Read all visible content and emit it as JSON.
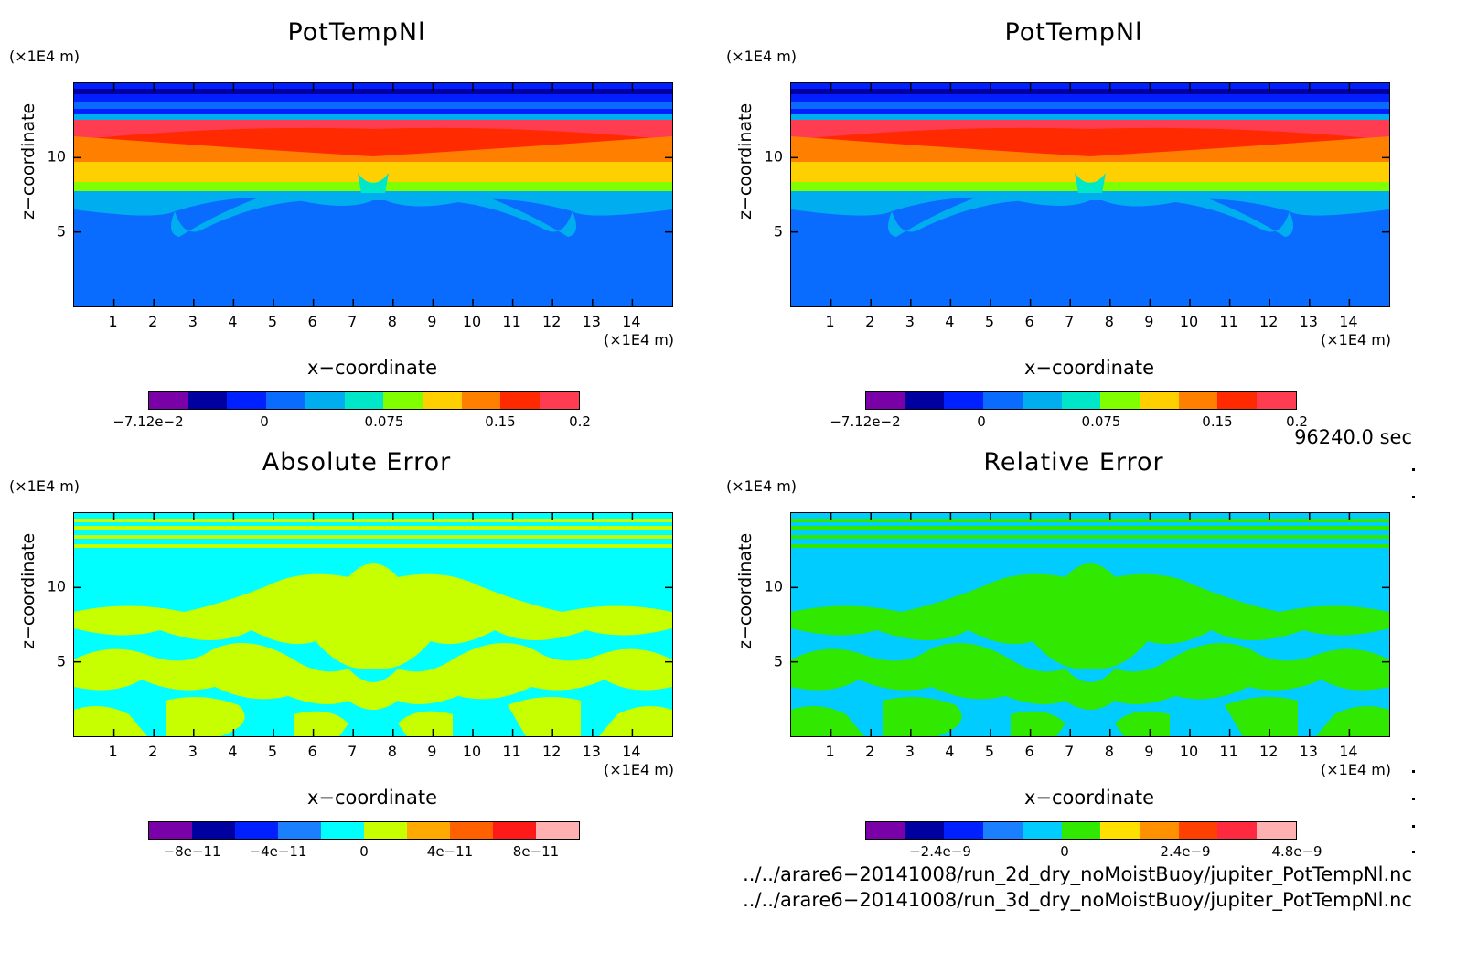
{
  "panels": [
    {
      "id": "pottemp-2d",
      "title": "PotTempNl",
      "z_unit": "(×1E4 m)",
      "z_label": "z−coordinate",
      "x_label": "x−coordinate",
      "x_unit": "(×1E4 m)",
      "x_ticks": [
        "1",
        "2",
        "3",
        "4",
        "5",
        "6",
        "7",
        "8",
        "9",
        "10",
        "11",
        "12",
        "13",
        "14"
      ],
      "z_ticks": [
        "5",
        "10"
      ],
      "colorbar": {
        "colors": [
          "#7a00a8",
          "#0000a0",
          "#0020ff",
          "#0a6cff",
          "#00aef0",
          "#00e6c8",
          "#80ff00",
          "#ffd000",
          "#ff8000",
          "#ff2a00",
          "#ff3c50"
        ],
        "labels": [
          "−7.12e−2",
          "0",
          "0.075",
          "0.15",
          "0.2"
        ]
      }
    },
    {
      "id": "pottemp-3d",
      "title": "PotTempNl",
      "z_unit": "(×1E4 m)",
      "z_label": "z−coordinate",
      "x_label": "x−coordinate",
      "x_unit": "(×1E4 m)",
      "x_ticks": [
        "1",
        "2",
        "3",
        "4",
        "5",
        "6",
        "7",
        "8",
        "9",
        "10",
        "11",
        "12",
        "13",
        "14"
      ],
      "z_ticks": [
        "5",
        "10"
      ],
      "colorbar": {
        "colors": [
          "#7a00a8",
          "#0000a0",
          "#0020ff",
          "#0a6cff",
          "#00aef0",
          "#00e6c8",
          "#80ff00",
          "#ffd000",
          "#ff8000",
          "#ff2a00",
          "#ff3c50"
        ],
        "labels": [
          "−7.12e−2",
          "0",
          "0.075",
          "0.15",
          "0.2"
        ]
      }
    },
    {
      "id": "absolute-error",
      "title": "Absolute Error",
      "z_unit": "(×1E4 m)",
      "z_label": "z−coordinate",
      "x_label": "x−coordinate",
      "x_unit": "(×1E4 m)",
      "x_ticks": [
        "1",
        "2",
        "3",
        "4",
        "5",
        "6",
        "7",
        "8",
        "9",
        "10",
        "11",
        "12",
        "13",
        "14"
      ],
      "z_ticks": [
        "5",
        "10"
      ],
      "colorbar": {
        "colors": [
          "#7a00a8",
          "#0000a0",
          "#0020ff",
          "#1a80ff",
          "#00ffff",
          "#c8ff00",
          "#ffaa00",
          "#ff6000",
          "#ff1a1a",
          "#ffb0b0"
        ],
        "labels": [
          "−8e−11",
          "−4e−11",
          "0",
          "4e−11",
          "8e−11"
        ]
      }
    },
    {
      "id": "relative-error",
      "title": "Relative Error",
      "z_unit": "(×1E4 m)",
      "z_label": "z−coordinate",
      "x_label": "x−coordinate",
      "x_unit": "(×1E4 m)",
      "x_ticks": [
        "1",
        "2",
        "3",
        "4",
        "5",
        "6",
        "7",
        "8",
        "9",
        "10",
        "11",
        "12",
        "13",
        "14"
      ],
      "z_ticks": [
        "5",
        "10"
      ],
      "colorbar": {
        "colors": [
          "#7a00a8",
          "#0000a0",
          "#0020ff",
          "#1a80ff",
          "#00ccff",
          "#30e800",
          "#ffe000",
          "#ff9000",
          "#ff4000",
          "#ff2a40",
          "#ffb0b0"
        ],
        "labels": [
          "−2.4e−9",
          "0",
          "2.4e−9",
          "4.8e−9"
        ]
      }
    }
  ],
  "time_label": "96240.0 sec",
  "file_paths": [
    "../../arare6−20141008/run_2d_dry_noMoistBuoy/jupiter_PotTempNl.nc",
    "../../arare6−20141008/run_3d_dry_noMoistBuoy/jupiter_PotTempNl.nc"
  ],
  "chart_data": [
    {
      "type": "heatmap",
      "title": "PotTempNl",
      "xlabel": "x−coordinate",
      "ylabel": "z−coordinate",
      "x_unit": "(×1E4 m)",
      "y_unit": "(×1E4 m)",
      "xlim": [
        0,
        15
      ],
      "ylim": [
        0,
        15
      ],
      "x_ticks": [
        1,
        2,
        3,
        4,
        5,
        6,
        7,
        8,
        9,
        10,
        11,
        12,
        13,
        14
      ],
      "y_ticks": [
        5,
        10
      ],
      "colorbar_ticks": [
        "−7.12e−2",
        "0",
        "0.075",
        "0.15",
        "0.2"
      ]
    },
    {
      "type": "heatmap",
      "title": "PotTempNl",
      "xlabel": "x−coordinate",
      "ylabel": "z−coordinate",
      "x_unit": "(×1E4 m)",
      "y_unit": "(×1E4 m)",
      "xlim": [
        0,
        15
      ],
      "ylim": [
        0,
        15
      ],
      "x_ticks": [
        1,
        2,
        3,
        4,
        5,
        6,
        7,
        8,
        9,
        10,
        11,
        12,
        13,
        14
      ],
      "y_ticks": [
        5,
        10
      ],
      "colorbar_ticks": [
        "−7.12e−2",
        "0",
        "0.075",
        "0.15",
        "0.2"
      ]
    },
    {
      "type": "heatmap",
      "title": "Absolute Error",
      "xlabel": "x−coordinate",
      "ylabel": "z−coordinate",
      "xlim": [
        0,
        15
      ],
      "ylim": [
        0,
        15
      ],
      "x_ticks": [
        1,
        2,
        3,
        4,
        5,
        6,
        7,
        8,
        9,
        10,
        11,
        12,
        13,
        14
      ],
      "y_ticks": [
        5,
        10
      ],
      "colorbar_ticks": [
        "−8e−11",
        "−4e−11",
        "0",
        "4e−11",
        "8e−11"
      ]
    },
    {
      "type": "heatmap",
      "title": "Relative Error",
      "xlabel": "x−coordinate",
      "ylabel": "z−coordinate",
      "xlim": [
        0,
        15
      ],
      "ylim": [
        0,
        15
      ],
      "x_ticks": [
        1,
        2,
        3,
        4,
        5,
        6,
        7,
        8,
        9,
        10,
        11,
        12,
        13,
        14
      ],
      "y_ticks": [
        5,
        10
      ],
      "colorbar_ticks": [
        "−2.4e−9",
        "0",
        "2.4e−9",
        "4.8e−9"
      ]
    }
  ]
}
